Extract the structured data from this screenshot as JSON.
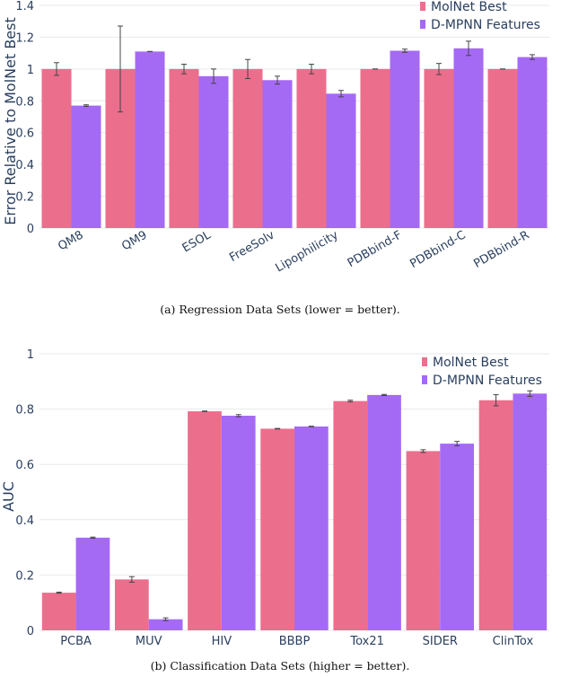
{
  "colors": {
    "molnet": "#ec6e8d",
    "dmpnn": "#a56af4",
    "grid": "#e7e9ee",
    "text": "#2a3f5f",
    "error": "#444444"
  },
  "chart_data": [
    {
      "type": "bar",
      "caption": "(a) Regression Data Sets (lower = better).",
      "ylabel": "Error Relative to MolNet Best",
      "ylim": [
        0,
        1.4
      ],
      "yticks": [
        "0",
        "0.2",
        "0.4",
        "0.6",
        "0.8",
        "1",
        "1.2",
        "1.4"
      ],
      "ytick_values": [
        0,
        0.2,
        0.4,
        0.6,
        0.8,
        1.0,
        1.2,
        1.4
      ],
      "categories": [
        "QM8",
        "QM9",
        "ESOL",
        "FreeSolv",
        "Lipophilicity",
        "PDBbind-F",
        "PDBbind-C",
        "PDBbind-R"
      ],
      "tick_rotation": -30,
      "series": [
        {
          "name": "MolNet Best",
          "values": [
            1.0,
            1.0,
            1.0,
            1.0,
            1.0,
            1.0,
            1.0,
            1.0
          ],
          "errors": [
            0.04,
            0.27,
            0.03,
            0.06,
            0.03,
            0.0,
            0.035,
            0.0
          ]
        },
        {
          "name": "D-MPNN Features",
          "values": [
            0.77,
            1.11,
            0.955,
            0.93,
            0.845,
            1.115,
            1.13,
            1.075
          ],
          "errors": [
            0.005,
            0.0,
            0.045,
            0.025,
            0.02,
            0.01,
            0.045,
            0.015
          ]
        }
      ],
      "legend_position": "top-right"
    },
    {
      "type": "bar",
      "caption": "(b) Classification Data Sets (higher = better).",
      "ylabel": "AUC",
      "ylim": [
        0,
        1
      ],
      "yticks": [
        "0",
        "0.2",
        "0.4",
        "0.6",
        "0.8",
        "1"
      ],
      "ytick_values": [
        0,
        0.2,
        0.4,
        0.6,
        0.8,
        1.0
      ],
      "categories": [
        "PCBA",
        "MUV",
        "HIV",
        "BBBP",
        "Tox21",
        "SIDER",
        "ClinTox"
      ],
      "tick_rotation": 0,
      "series": [
        {
          "name": "MolNet Best",
          "values": [
            0.136,
            0.184,
            0.792,
            0.729,
            0.829,
            0.648,
            0.832
          ],
          "errors": [
            0.002,
            0.01,
            0.001,
            0.001,
            0.003,
            0.005,
            0.02
          ]
        },
        {
          "name": "D-MPNN Features",
          "values": [
            0.335,
            0.04,
            0.776,
            0.737,
            0.851,
            0.675,
            0.856
          ],
          "errors": [
            0.002,
            0.005,
            0.004,
            0.001,
            0.002,
            0.008,
            0.01
          ]
        }
      ],
      "legend_position": "top-right"
    }
  ]
}
